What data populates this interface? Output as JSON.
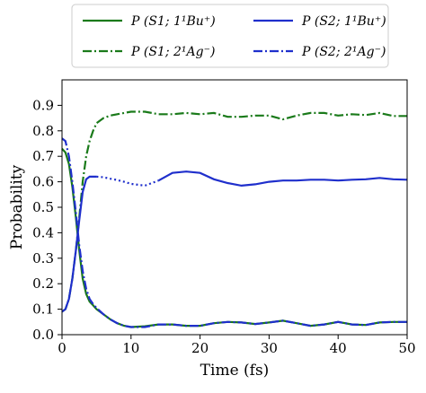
{
  "chart_data": {
    "type": "line",
    "xlabel": "Time (fs)",
    "ylabel": "Probability",
    "xlim": [
      0,
      50
    ],
    "ylim": [
      0,
      1.0
    ],
    "xticks": [
      "0",
      "10",
      "20",
      "30",
      "40",
      "50"
    ],
    "yticks": [
      "0.0",
      "0.1",
      "0.2",
      "0.3",
      "0.4",
      "0.5",
      "0.6",
      "0.7",
      "0.8",
      "0.9"
    ],
    "grid": false,
    "legend_position": "top, outside plot, two columns",
    "series": [
      {
        "name": "P (S1; 1¹Bu⁺)",
        "color": "#1a7a1a",
        "style": "solid",
        "x": [
          0,
          0.5,
          1,
          1.5,
          2,
          2.5,
          3,
          3.5,
          4,
          4.5,
          5,
          6,
          7,
          8,
          9,
          10,
          12,
          14,
          16,
          18,
          20,
          22,
          24,
          26,
          28,
          30,
          32,
          34,
          36,
          38,
          40,
          42,
          44,
          46,
          48,
          50
        ],
        "values": [
          0.73,
          0.715,
          0.67,
          0.58,
          0.46,
          0.33,
          0.22,
          0.16,
          0.13,
          0.115,
          0.1,
          0.08,
          0.06,
          0.045,
          0.035,
          0.03,
          0.033,
          0.04,
          0.04,
          0.035,
          0.035,
          0.045,
          0.05,
          0.048,
          0.042,
          0.048,
          0.055,
          0.045,
          0.035,
          0.04,
          0.05,
          0.04,
          0.038,
          0.048,
          0.05,
          0.05
        ]
      },
      {
        "name": "P (S1; 2¹Ag⁻)",
        "color": "#1a7a1a",
        "style": "dashdot",
        "x": [
          0,
          0.5,
          1,
          1.5,
          2,
          2.5,
          3,
          3.5,
          4,
          4.5,
          5,
          6,
          7,
          8,
          9,
          10,
          12,
          14,
          16,
          18,
          20,
          22,
          24,
          26,
          28,
          30,
          32,
          34,
          36,
          38,
          40,
          42,
          44,
          46,
          48,
          50
        ],
        "values": [
          0.09,
          0.1,
          0.14,
          0.22,
          0.33,
          0.46,
          0.6,
          0.7,
          0.76,
          0.8,
          0.83,
          0.85,
          0.86,
          0.865,
          0.87,
          0.875,
          0.875,
          0.865,
          0.865,
          0.87,
          0.865,
          0.87,
          0.855,
          0.855,
          0.86,
          0.86,
          0.845,
          0.86,
          0.87,
          0.87,
          0.86,
          0.865,
          0.862,
          0.87,
          0.858,
          0.858
        ]
      },
      {
        "name": "P (S2; 1¹Bu⁺)",
        "color": "#1f2fcc",
        "style": "solid",
        "x": [
          0,
          0.5,
          1,
          1.5,
          2,
          2.5,
          3,
          3.5,
          4,
          4.5,
          5,
          6,
          7,
          8,
          9,
          10,
          12,
          14,
          16,
          18,
          20,
          22,
          24,
          26,
          28,
          30,
          32,
          34,
          36,
          38,
          40,
          42,
          44,
          46,
          48,
          50
        ],
        "values": [
          0.09,
          0.1,
          0.14,
          0.22,
          0.33,
          0.45,
          0.56,
          0.61,
          0.62,
          0.62,
          0.62,
          0.618,
          0.612,
          0.607,
          0.6,
          0.592,
          0.585,
          0.605,
          0.635,
          0.64,
          0.635,
          0.61,
          0.595,
          0.585,
          0.59,
          0.6,
          0.605,
          0.605,
          0.608,
          0.608,
          0.605,
          0.608,
          0.61,
          0.615,
          0.61,
          0.608
        ]
      },
      {
        "name": "P (S2; 2¹Ag⁻)",
        "color": "#1f2fcc",
        "style": "dashdot",
        "x": [
          0,
          0.5,
          1,
          1.5,
          2,
          2.5,
          3,
          3.5,
          4,
          4.5,
          5,
          6,
          7,
          8,
          9,
          10,
          12,
          14,
          16,
          18,
          20,
          22,
          24,
          26,
          28,
          30,
          32,
          34,
          36,
          38,
          40,
          42,
          44,
          46,
          48,
          50
        ],
        "values": [
          0.77,
          0.76,
          0.7,
          0.6,
          0.48,
          0.35,
          0.25,
          0.18,
          0.14,
          0.12,
          0.105,
          0.08,
          0.06,
          0.045,
          0.035,
          0.03,
          0.03,
          0.04,
          0.04,
          0.035,
          0.035,
          0.045,
          0.05,
          0.048,
          0.042,
          0.048,
          0.055,
          0.045,
          0.035,
          0.04,
          0.05,
          0.04,
          0.038,
          0.048,
          0.05,
          0.05
        ]
      }
    ],
    "dotted_segment": {
      "x_start": 5,
      "x_end": 14,
      "note": "S2 1Bu+ curve drawn dotted between these x values"
    }
  }
}
